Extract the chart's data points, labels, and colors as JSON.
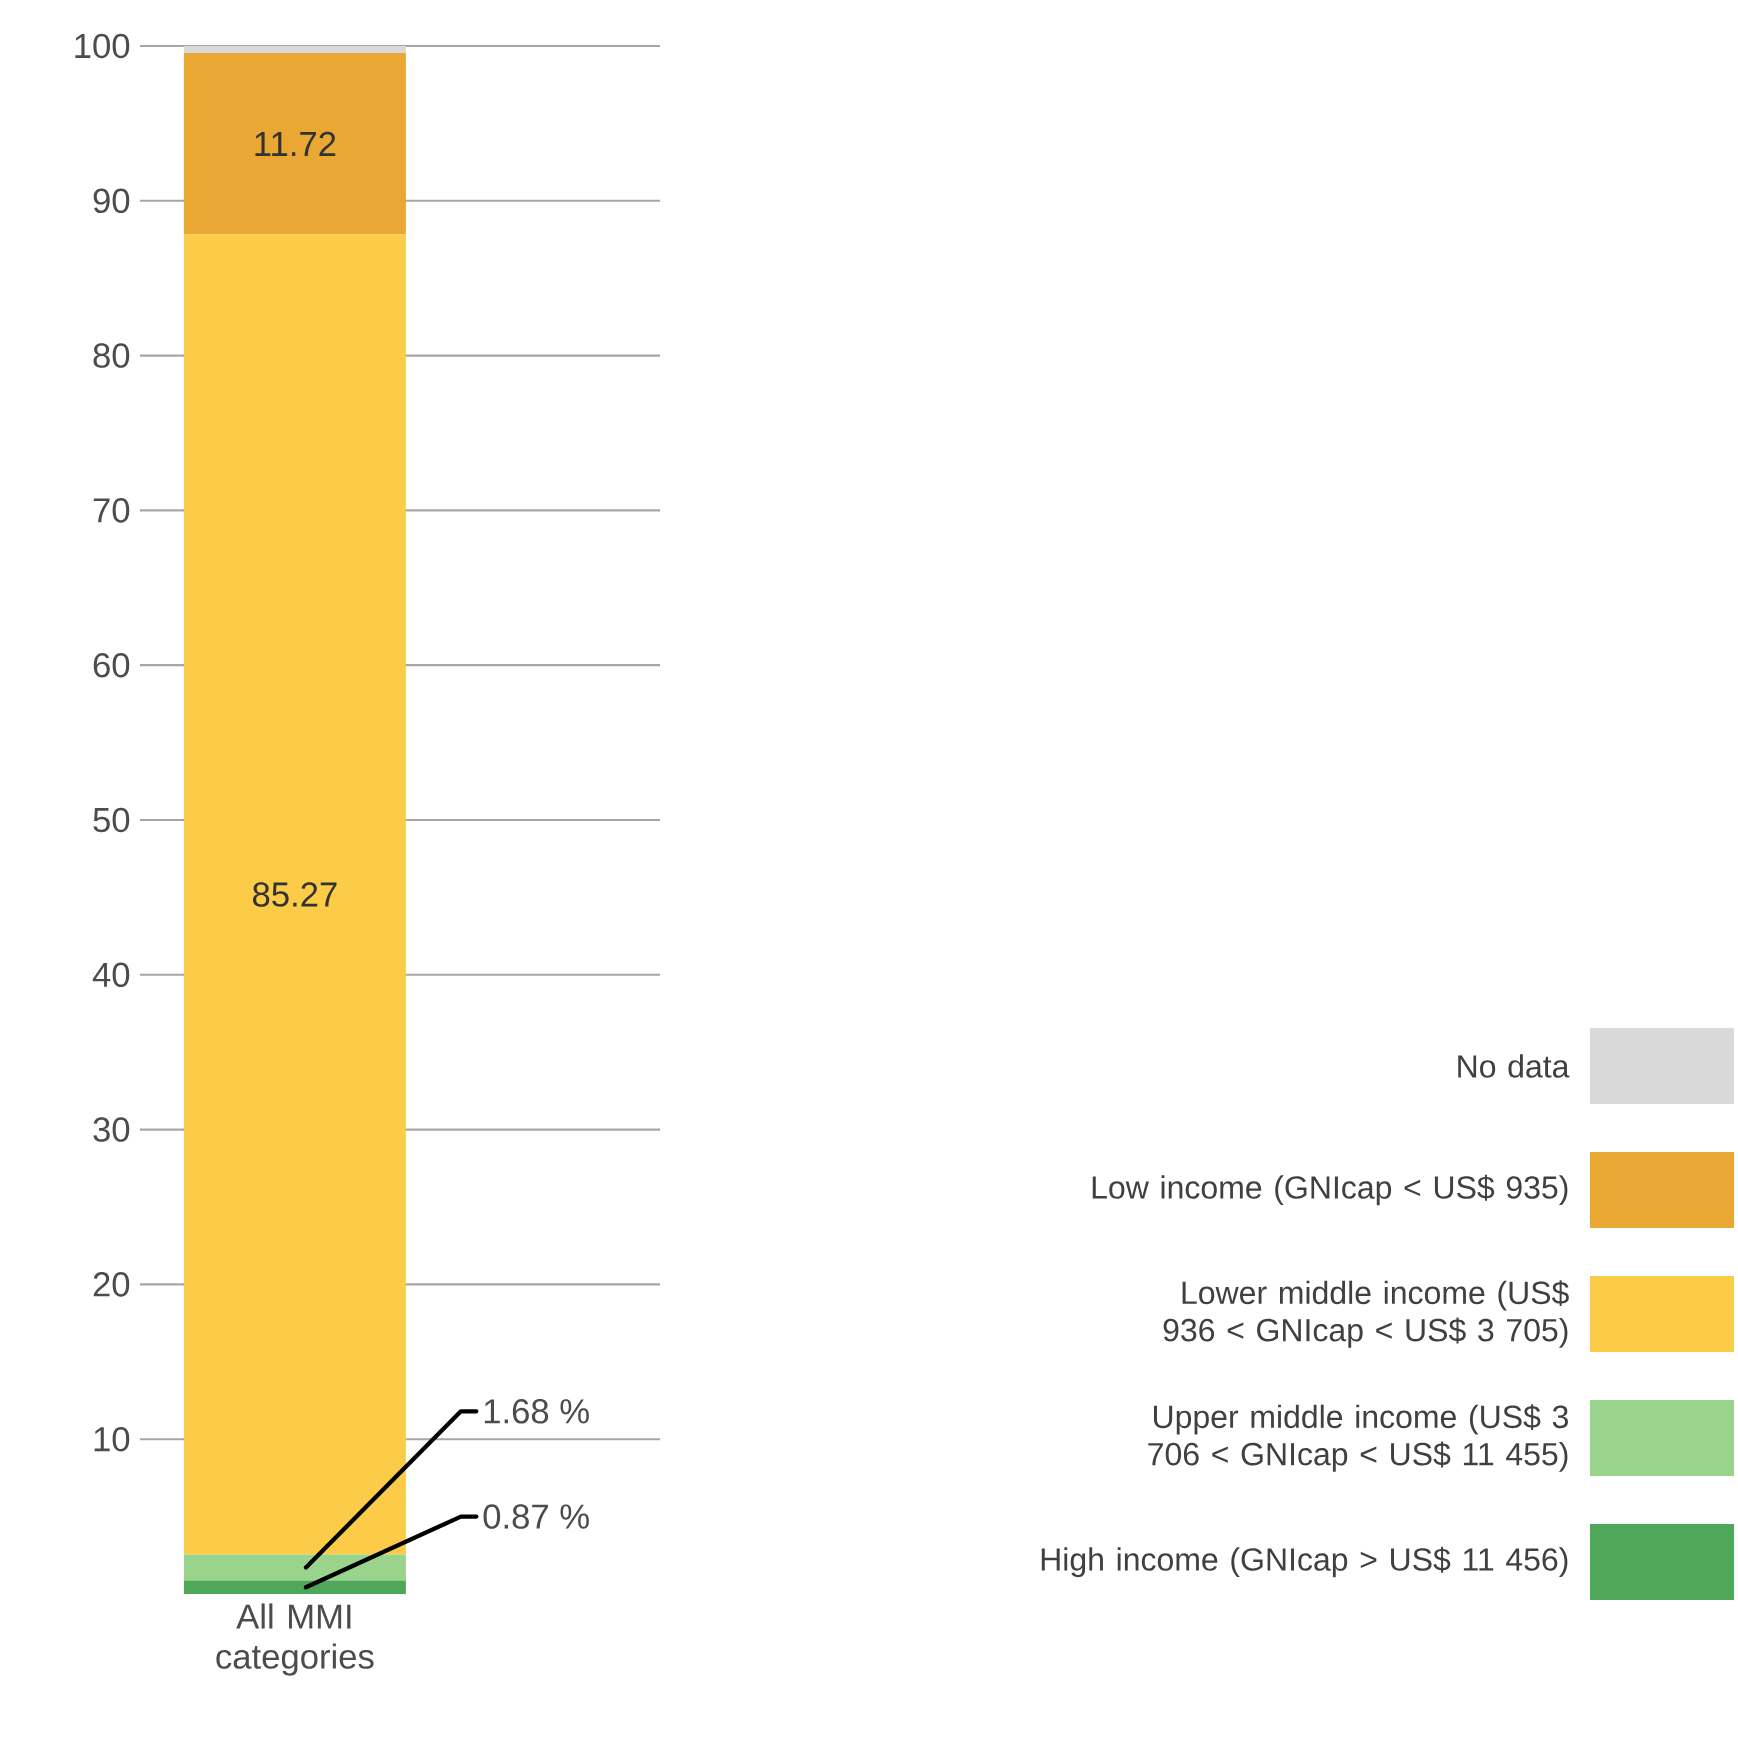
{
  "chart_data": {
    "type": "bar",
    "stacked": true,
    "categories": [
      "All MMI categories"
    ],
    "series": [
      {
        "name": "High income (GNIcap > US$ 11 456)",
        "color": "#4fa85a",
        "values": [
          0.87
        ],
        "value_labels": [
          "0.87 %"
        ]
      },
      {
        "name": "Upper middle income (US$ 3 706 < GNIcap < US$ 11 455)",
        "color": "#9ad38c",
        "values": [
          1.68
        ],
        "value_labels": [
          "1.68 %"
        ]
      },
      {
        "name": "Lower middle income (US$ 936 < GNIcap < US$ 3 705)",
        "color": "#fccb48",
        "values": [
          85.27
        ],
        "value_labels": [
          "85.27"
        ]
      },
      {
        "name": "Low income (GNIcap < US$ 935)",
        "color": "#e9a733",
        "values": [
          11.72
        ],
        "value_labels": [
          "11.72"
        ]
      },
      {
        "name": "No data",
        "color": "#d9d9d9",
        "values": [
          0.46
        ],
        "value_labels": [
          null
        ]
      }
    ],
    "ylim": [
      0,
      100
    ],
    "yticks": [
      10,
      20,
      30,
      40,
      50,
      60,
      70,
      80,
      90,
      100
    ],
    "grid": "y",
    "legend": "bottom right"
  }
}
